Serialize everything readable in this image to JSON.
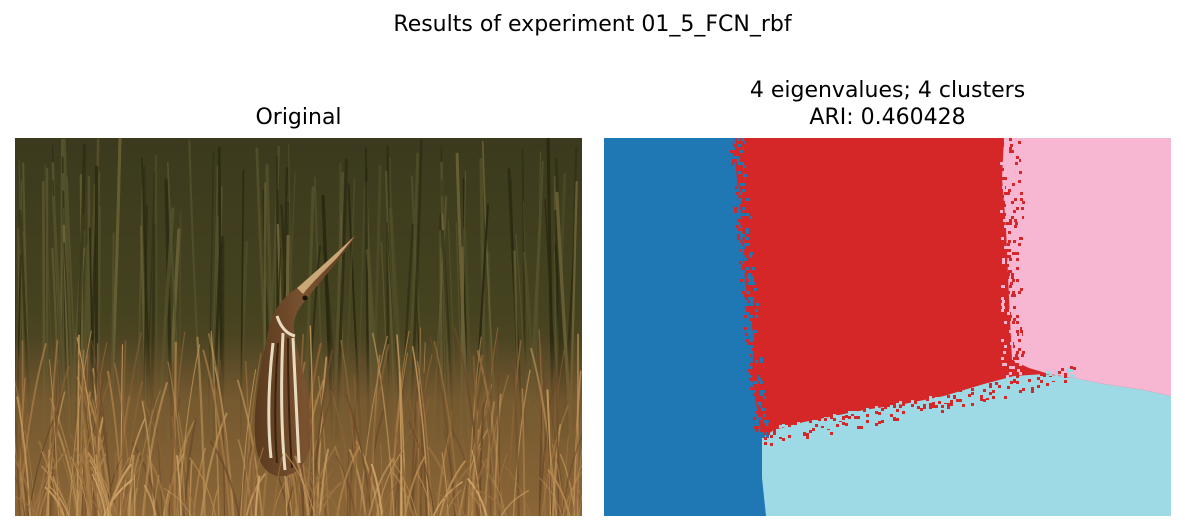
{
  "figure": {
    "suptitle": "Results of experiment 01_5_FCN_rbf"
  },
  "panels": {
    "left": {
      "title": "Original"
    },
    "right": {
      "title_line1": "4 eigenvalues; 4 clusters",
      "title_line2": "ARI: 0.460428"
    }
  },
  "segmentation": {
    "n_clusters": 4,
    "ari": 0.460428,
    "cluster_colors": [
      "#1f77b4",
      "#d62728",
      "#f7b6d2",
      "#9edae5"
    ]
  },
  "photo": {
    "subject": "bittern-in-grass",
    "palette": [
      "#3a3a1d",
      "#4a4a26",
      "#6b4a2a",
      "#8a6236",
      "#a77b45",
      "#e9d9bb"
    ]
  }
}
